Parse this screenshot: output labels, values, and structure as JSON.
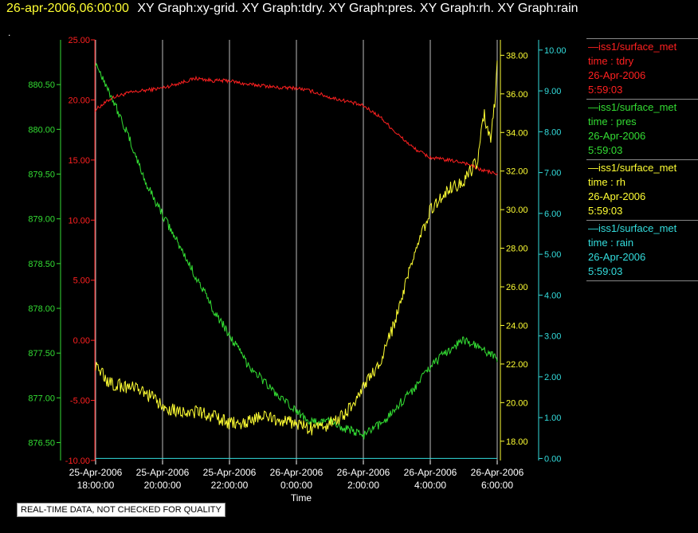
{
  "header": {
    "timestamp": "26-apr-2006,06:00:00",
    "titles": "XY Graph:xy-grid.  XY Graph:tdry.  XY Graph:pres.  XY Graph:rh.  XY Graph:rain",
    "dot": "."
  },
  "footer": "REAL-TIME DATA, NOT CHECKED FOR QUALITY",
  "legend": [
    {
      "name": "—iss1/surface_met",
      "var": "time : tdry",
      "date": "26-Apr-2006",
      "time": "5:59:03",
      "color": "#ff2020"
    },
    {
      "name": "—iss1/surface_met",
      "var": "time : pres",
      "date": "26-Apr-2006",
      "time": "5:59:03",
      "color": "#33dd33"
    },
    {
      "name": "—iss1/surface_met",
      "var": "time : rh",
      "date": "26-Apr-2006",
      "time": "5:59:03",
      "color": "#ffff33"
    },
    {
      "name": "—iss1/surface_met",
      "var": "time : rain",
      "date": "26-Apr-2006",
      "time": "5:59:03",
      "color": "#33dddd"
    }
  ],
  "chart_data": {
    "type": "line",
    "xlabel": "Time",
    "x_ticks": [
      {
        "hours": -12,
        "line1": "25-Apr-2006",
        "line2": "18:00:00"
      },
      {
        "hours": -10,
        "line1": "25-Apr-2006",
        "line2": "20:00:00"
      },
      {
        "hours": -8,
        "line1": "25-Apr-2006",
        "line2": "22:00:00"
      },
      {
        "hours": -6,
        "line1": "26-Apr-2006",
        "line2": "0:00:00"
      },
      {
        "hours": -4,
        "line1": "26-Apr-2006",
        "line2": "2:00:00"
      },
      {
        "hours": -2,
        "line1": "26-Apr-2006",
        "line2": "4:00:00"
      },
      {
        "hours": 0,
        "line1": "26-Apr-2006",
        "line2": "6:00:00"
      }
    ],
    "x_range_hours": [
      -12,
      0
    ],
    "grid": true,
    "axes": {
      "pres": {
        "color": "#33dd33",
        "range": [
          876.3,
          881.0
        ],
        "ticks": [
          "876.50",
          "877.00",
          "877.50",
          "878.00",
          "878.50",
          "879.00",
          "879.50",
          "880.00",
          "880.50"
        ]
      },
      "tdry": {
        "color": "#ff2020",
        "range": [
          -10,
          25
        ],
        "ticks": [
          "-10.00",
          "-5.00",
          "0.00",
          "5.00",
          "10.00",
          "15.00",
          "20.00",
          "25.00"
        ]
      },
      "rh": {
        "color": "#ffff33",
        "range": [
          17.0,
          38.8
        ],
        "ticks": [
          "18.00",
          "20.00",
          "22.00",
          "24.00",
          "26.00",
          "28.00",
          "30.00",
          "32.00",
          "34.00",
          "36.00",
          "38.00"
        ]
      },
      "rain": {
        "color": "#33dddd",
        "range": [
          -0.05,
          10.25
        ],
        "ticks": [
          "0.00",
          "1.00",
          "2.00",
          "3.00",
          "4.00",
          "5.00",
          "6.00",
          "7.00",
          "8.00",
          "9.00",
          "10.00"
        ]
      }
    },
    "series": [
      {
        "id": "tdry",
        "axis": "tdry",
        "color": "#ff2020",
        "noise": 0.15,
        "points": [
          [
            -12,
            19.2
          ],
          [
            -11.5,
            20.2
          ],
          [
            -11,
            20.6
          ],
          [
            -10.5,
            20.8
          ],
          [
            -10,
            21.0
          ],
          [
            -9.5,
            21.4
          ],
          [
            -9,
            21.8
          ],
          [
            -8.5,
            21.6
          ],
          [
            -8,
            21.6
          ],
          [
            -7.5,
            21.3
          ],
          [
            -7,
            21.2
          ],
          [
            -6.5,
            21.0
          ],
          [
            -6,
            21.0
          ],
          [
            -5.5,
            20.7
          ],
          [
            -5,
            20.2
          ],
          [
            -4.5,
            19.9
          ],
          [
            -4,
            19.5
          ],
          [
            -3.5,
            18.6
          ],
          [
            -3,
            17.2
          ],
          [
            -2.5,
            16.0
          ],
          [
            -2,
            15.2
          ],
          [
            -1.5,
            15.0
          ],
          [
            -1,
            14.8
          ],
          [
            -0.5,
            14.2
          ],
          [
            -0.2,
            14.0
          ],
          [
            0,
            13.8
          ]
        ]
      },
      {
        "id": "pres",
        "axis": "pres",
        "color": "#33dd33",
        "noise": 0.05,
        "points": [
          [
            -12,
            880.75
          ],
          [
            -11.5,
            880.35
          ],
          [
            -11,
            879.9
          ],
          [
            -10.5,
            879.4
          ],
          [
            -10,
            879.05
          ],
          [
            -9.5,
            878.7
          ],
          [
            -9,
            878.35
          ],
          [
            -8.5,
            878.0
          ],
          [
            -8,
            877.7
          ],
          [
            -7.5,
            877.4
          ],
          [
            -7,
            877.2
          ],
          [
            -6.5,
            877.0
          ],
          [
            -6,
            876.85
          ],
          [
            -5.5,
            876.72
          ],
          [
            -5,
            876.75
          ],
          [
            -4.5,
            876.65
          ],
          [
            -4,
            876.58
          ],
          [
            -3.5,
            876.7
          ],
          [
            -3,
            876.9
          ],
          [
            -2.5,
            877.1
          ],
          [
            -2,
            877.35
          ],
          [
            -1.5,
            877.52
          ],
          [
            -1,
            877.65
          ],
          [
            -0.5,
            877.55
          ],
          [
            0,
            877.45
          ]
        ]
      },
      {
        "id": "rh",
        "axis": "rh",
        "color": "#ffff33",
        "noise": 0.35,
        "points": [
          [
            -12,
            22.0
          ],
          [
            -11.6,
            21.0
          ],
          [
            -11,
            20.8
          ],
          [
            -10.5,
            20.5
          ],
          [
            -10,
            19.8
          ],
          [
            -9.5,
            19.6
          ],
          [
            -9,
            19.5
          ],
          [
            -8.5,
            19.3
          ],
          [
            -8,
            18.9
          ],
          [
            -7.5,
            19.0
          ],
          [
            -7,
            19.3
          ],
          [
            -6.5,
            19.1
          ],
          [
            -6,
            18.9
          ],
          [
            -5.5,
            18.6
          ],
          [
            -5,
            18.9
          ],
          [
            -4.5,
            19.5
          ],
          [
            -4,
            20.8
          ],
          [
            -3.5,
            22.0
          ],
          [
            -3,
            24.5
          ],
          [
            -2.5,
            27.5
          ],
          [
            -2,
            30.0
          ],
          [
            -1.5,
            31.0
          ],
          [
            -1,
            31.5
          ],
          [
            -0.6,
            32.5
          ],
          [
            -0.4,
            35.0
          ],
          [
            -0.2,
            33.5
          ],
          [
            -0.05,
            36.0
          ],
          [
            0,
            38.0
          ]
        ]
      },
      {
        "id": "rain",
        "axis": "rain",
        "color": "#33dddd",
        "noise": 0,
        "points": [
          [
            -12,
            0
          ],
          [
            0,
            0
          ]
        ]
      }
    ]
  }
}
